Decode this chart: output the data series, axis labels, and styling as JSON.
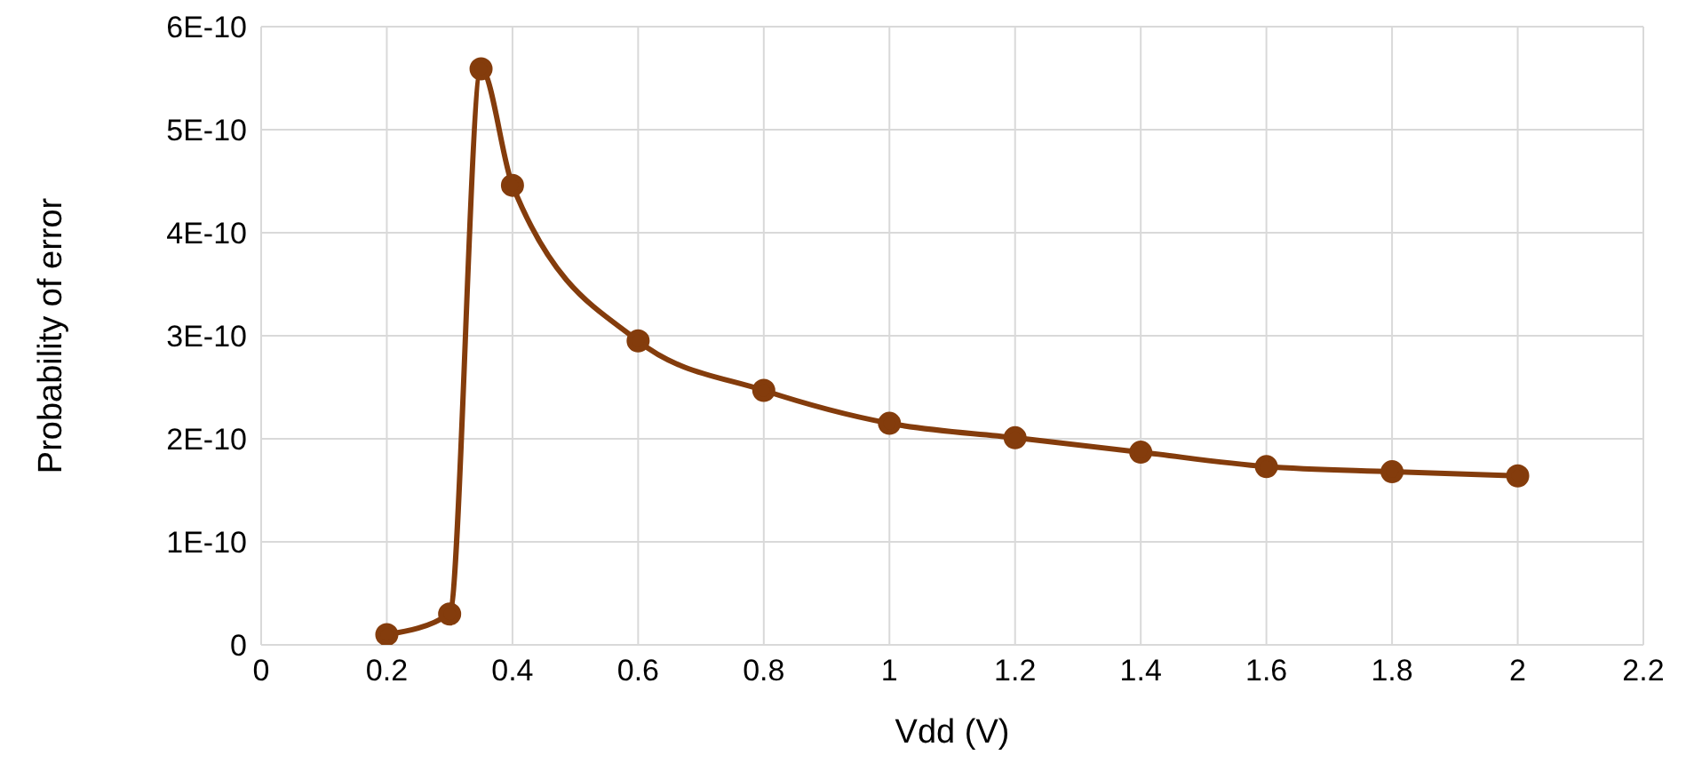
{
  "chart_data": {
    "type": "line",
    "xlabel": "Vdd (V)",
    "ylabel": "Probability of error",
    "x": [
      0.2,
      0.3,
      0.35,
      0.4,
      0.6,
      0.8,
      1.0,
      1.2,
      1.4,
      1.6,
      1.8,
      2.0
    ],
    "series": [
      {
        "color": "#843c0c",
        "values": [
          1e-11,
          3e-11,
          5.59e-10,
          4.46e-10,
          2.95e-10,
          2.47e-10,
          2.15e-10,
          2.01e-10,
          1.87e-10,
          1.73e-10,
          1.68e-10,
          1.64e-10
        ]
      }
    ],
    "xlim": [
      0,
      2.2
    ],
    "xticks": [
      0,
      0.2,
      0.4,
      0.6,
      0.8,
      1,
      1.2,
      1.4,
      1.6,
      1.8,
      2,
      2.2
    ],
    "ylim": [
      0,
      6e-10
    ],
    "yticks": [
      0,
      {
        "value": 1e-10,
        "label": "1E-10"
      },
      {
        "value": 2e-10,
        "label": "2E-10"
      },
      {
        "value": 3e-10,
        "label": "3E-10"
      },
      {
        "value": 4e-10,
        "label": "4E-10"
      },
      {
        "value": 5e-10,
        "label": "5E-10"
      },
      {
        "value": 6e-10,
        "label": "6E-10"
      }
    ],
    "grid": true,
    "marker": "circle",
    "line_style": "solid",
    "legend": false
  }
}
